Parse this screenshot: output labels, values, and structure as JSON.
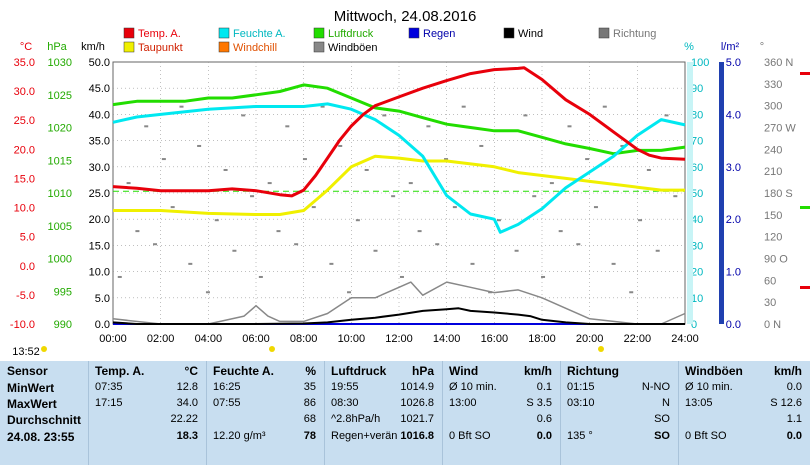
{
  "title": "Mittwoch, 24.08.2016",
  "colors": {
    "temp": "#e8000b",
    "feuchte": "#00e8f0",
    "luftdruck": "#22dd00",
    "regen": "#0000dd",
    "wind": "#000000",
    "richtung": "#777777",
    "taupunkt": "#f0f000",
    "windchill": "#ff7700",
    "windboeen": "#888888",
    "table_bg": "#c8def0"
  },
  "legend": [
    {
      "label": "Temp. A.",
      "color": "#e8000b"
    },
    {
      "label": "Feuchte A.",
      "color": "#00e8f0"
    },
    {
      "label": "Luftdruck",
      "color": "#22dd00"
    },
    {
      "label": "Regen",
      "color": "#0000dd"
    },
    {
      "label": "Wind",
      "color": "#000000"
    },
    {
      "label": "Richtung",
      "color": "#777777"
    },
    {
      "label": "Taupunkt",
      "color": "#f0f000"
    },
    {
      "label": "Windchill",
      "color": "#ff7700"
    },
    {
      "label": "Windböen",
      "color": "#888888"
    }
  ],
  "axis_units": {
    "celsius": "°C",
    "hpa": "hPa",
    "kmh": "km/h",
    "percent": "%",
    "rain": "l/m²",
    "deg": "°"
  },
  "time_label": "13:52",
  "chart_data": {
    "type": "line",
    "x_ticks": [
      "00:00",
      "02:00",
      "04:00",
      "06:00",
      "08:00",
      "10:00",
      "12:00",
      "14:00",
      "16:00",
      "18:00",
      "20:00",
      "22:00",
      "24:00"
    ],
    "xlim": [
      0,
      24
    ],
    "axes": {
      "temp_c": {
        "range": [
          -10,
          35
        ],
        "ticks": [
          "35.0",
          "30.0",
          "25.0",
          "20.0",
          "15.0",
          "10.0",
          "5.0",
          "0.0",
          "-5.0",
          "-10.0"
        ]
      },
      "pressure_hpa": {
        "range": [
          990,
          1030
        ],
        "ticks": [
          "1030",
          "1025",
          "1020",
          "1015",
          "1010",
          "1005",
          "1000",
          "995",
          "990"
        ]
      },
      "wind_kmh": {
        "range": [
          0,
          50
        ],
        "ticks": [
          "50.0",
          "45.0",
          "40.0",
          "35.0",
          "30.0",
          "25.0",
          "20.0",
          "15.0",
          "10.0",
          "5.0",
          "0.0"
        ]
      },
      "humidity_pct": {
        "range": [
          0,
          100
        ],
        "ticks": [
          "100",
          "90",
          "80",
          "70",
          "60",
          "50",
          "40",
          "30",
          "20",
          "10",
          "0"
        ]
      },
      "rain_lm2": {
        "range": [
          0,
          5
        ],
        "ticks": [
          "5.0",
          "4.0",
          "3.0",
          "2.0",
          "1.0",
          "0.0"
        ]
      },
      "direction_deg": {
        "range": [
          0,
          360
        ],
        "ticks": [
          "360 N",
          "330",
          "300",
          "270 W",
          "240",
          "210",
          "180 S",
          "150",
          "120",
          "90 O",
          "60",
          "30",
          "0 N"
        ]
      }
    },
    "series": [
      {
        "name": "Temp. A.",
        "axis": "temp_c",
        "x": [
          0,
          1,
          2,
          3,
          4,
          5,
          6,
          7,
          7.5,
          8,
          8.5,
          9,
          9.5,
          10,
          10.5,
          11,
          12,
          13,
          14,
          15,
          16,
          17,
          17.25,
          18,
          19,
          20,
          21,
          22,
          22.5,
          23,
          24
        ],
        "y": [
          13.6,
          13.3,
          12.9,
          12.9,
          12.9,
          13.2,
          12.9,
          12.2,
          12.0,
          13.0,
          15.5,
          18.5,
          21.5,
          24.0,
          26.0,
          27.5,
          29.0,
          30.5,
          31.8,
          33.0,
          33.7,
          33.9,
          34.0,
          32.0,
          28.5,
          26.0,
          23.0,
          20.0,
          19.0,
          18.5,
          18.3
        ]
      },
      {
        "name": "Feuchte A.",
        "axis": "humidity_pct",
        "x": [
          0,
          1,
          2,
          4,
          6,
          8,
          9,
          10,
          11,
          12,
          13,
          14,
          15,
          16,
          16.25,
          17,
          18,
          19,
          20,
          21,
          22,
          23,
          24
        ],
        "y": [
          77,
          79,
          80,
          82,
          83,
          83,
          84,
          82,
          78,
          72,
          64,
          49,
          42,
          40,
          35,
          38,
          44,
          52,
          58,
          64,
          72,
          78,
          76
        ]
      },
      {
        "name": "Luftdruck",
        "axis": "pressure_hpa",
        "x": [
          0,
          1,
          2,
          3,
          4,
          5,
          6,
          7,
          8,
          9,
          10,
          11,
          12,
          13,
          14,
          15,
          16,
          17,
          18,
          19,
          20,
          21,
          22,
          23,
          24
        ],
        "y": [
          1023.5,
          1024.0,
          1024.0,
          1024.0,
          1024.5,
          1024.5,
          1025.0,
          1025.5,
          1026.5,
          1026.0,
          1024.5,
          1023.0,
          1022.5,
          1021.5,
          1020.5,
          1020.0,
          1019.5,
          1019.5,
          1018.5,
          1017.5,
          1016.8,
          1016.0,
          1016.5,
          1016.5,
          1017.0
        ]
      },
      {
        "name": "Taupunkt",
        "axis": "temp_c",
        "x": [
          0,
          2,
          4,
          6,
          7,
          8,
          9,
          10,
          11,
          12,
          13,
          14,
          15,
          16,
          17,
          18,
          19,
          20,
          21,
          22,
          23,
          24
        ],
        "y": [
          9.5,
          9.5,
          9.0,
          8.8,
          8.8,
          9.5,
          13.0,
          17.0,
          18.8,
          18.5,
          18.0,
          18.0,
          17.5,
          17.0,
          16.0,
          15.5,
          15.0,
          14.5,
          14.0,
          13.5,
          13.0,
          13.0
        ]
      },
      {
        "name": "Wind",
        "axis": "wind_kmh",
        "x": [
          0,
          1,
          4,
          6,
          8,
          9,
          10,
          11,
          12,
          13,
          14,
          14.5,
          15,
          16,
          17,
          17.5,
          18,
          19,
          20,
          24
        ],
        "y": [
          0.3,
          0,
          0,
          0,
          0.1,
          0.3,
          0.8,
          1.2,
          1.8,
          2.5,
          2.8,
          3.0,
          2.5,
          2.2,
          1.8,
          1.5,
          0.8,
          0.3,
          0,
          0
        ]
      },
      {
        "name": "Windböen",
        "axis": "wind_kmh",
        "x": [
          0,
          2,
          4,
          5.5,
          6,
          6.5,
          7,
          8,
          9,
          10,
          11,
          12,
          12.5,
          13,
          14,
          15,
          16,
          17,
          18,
          19,
          20,
          21,
          22,
          23,
          24
        ],
        "y": [
          1,
          0,
          0,
          1.5,
          3.5,
          1.5,
          0.5,
          0.5,
          2,
          5,
          5,
          7,
          8,
          5.5,
          8,
          7,
          6,
          6.5,
          5,
          3,
          1,
          0.5,
          0,
          0,
          2
        ]
      },
      {
        "name": "Regen",
        "axis": "rain_lm2",
        "x": [
          0,
          24
        ],
        "y": [
          0,
          0
        ]
      }
    ],
    "reference_line": {
      "axis": "temp_c",
      "y": 12.8
    }
  },
  "table": {
    "columns": [
      {
        "title": "Sensor"
      },
      {
        "title": "Temp. A.",
        "unit": "°C"
      },
      {
        "title": "Feuchte A.",
        "unit": "%"
      },
      {
        "title": "Luftdruck",
        "unit": "hPa"
      },
      {
        "title": "Wind",
        "unit": "km/h"
      },
      {
        "title": "Richtung",
        "unit": ""
      },
      {
        "title": "Windböen",
        "unit": "km/h"
      }
    ],
    "row_labels": [
      "MinWert",
      "MaxWert",
      "Durchschnitt",
      "24.08. 23:55"
    ],
    "temp": [
      [
        "07:35",
        "12.8"
      ],
      [
        "17:15",
        "34.0"
      ],
      [
        "",
        "22.22"
      ],
      [
        "",
        "18.3"
      ]
    ],
    "feuchte": [
      [
        "16:25",
        "35"
      ],
      [
        "07:55",
        "86"
      ],
      [
        "",
        "68"
      ],
      [
        "12.20 g/m³",
        "78"
      ]
    ],
    "luftdruck": [
      [
        "19:55",
        "1014.9"
      ],
      [
        "08:30",
        "1026.8"
      ],
      [
        "^2.8hPa/h",
        "1021.7"
      ],
      [
        "Regen+verän",
        "1016.8"
      ]
    ],
    "wind": [
      [
        "Ø 10 min.",
        "0.1"
      ],
      [
        "13:00",
        "S 3.5"
      ],
      [
        "",
        "0.6"
      ],
      [
        "0 Bft SO",
        "0.0"
      ]
    ],
    "richtung": [
      [
        "01:15",
        "N-NO"
      ],
      [
        "03:10",
        "N"
      ],
      [
        "",
        "SO"
      ],
      [
        "135 °",
        "SO"
      ]
    ],
    "windboeen": [
      [
        "Ø 10 min.",
        "0.0"
      ],
      [
        "13:05",
        "S 12.6"
      ],
      [
        "",
        "1.1"
      ],
      [
        "0 Bft SO",
        "0.0"
      ]
    ]
  }
}
